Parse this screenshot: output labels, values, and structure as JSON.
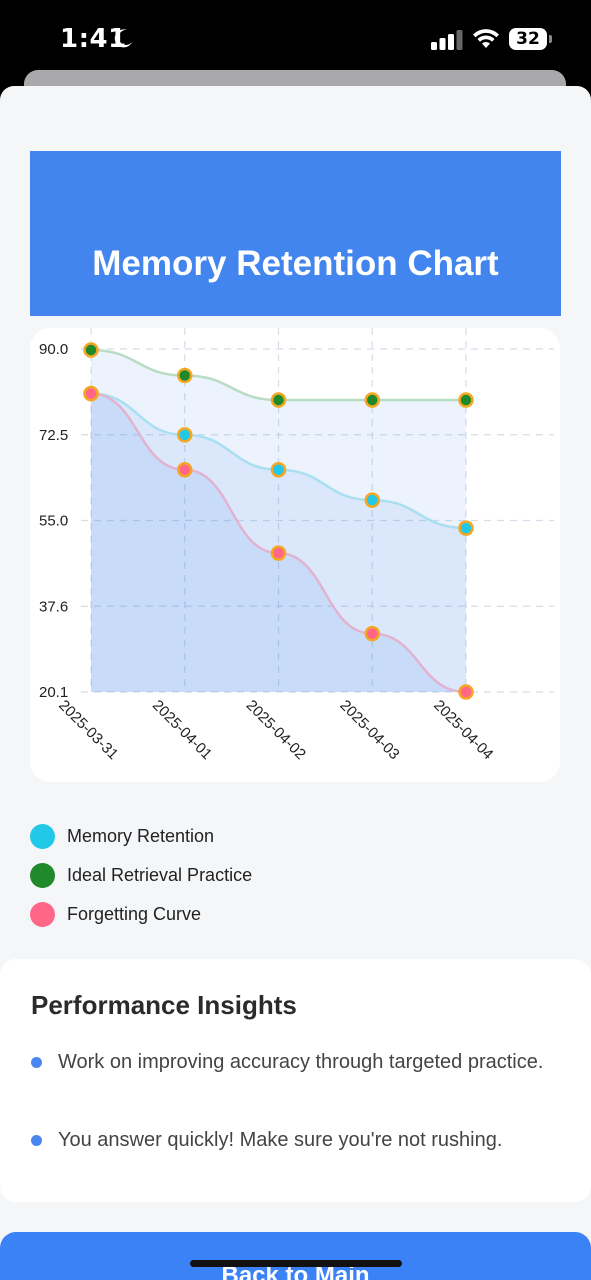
{
  "status": {
    "time": "1:41",
    "battery": "32"
  },
  "chart": {
    "title": "Memory Retention Chart"
  },
  "chart_data": {
    "type": "area",
    "title": "Memory Retention Chart",
    "categories": [
      "2025-03-31",
      "2025-04-01",
      "2025-04-02",
      "2025-04-03",
      "2025-04-04"
    ],
    "ylim": [
      20.1,
      90.0
    ],
    "yticks": [
      "90.0",
      "72.5",
      "55.0",
      "37.6",
      "20.1"
    ],
    "grid": true,
    "series": [
      {
        "name": "Memory Retention",
        "color": "#22c8e8",
        "values": [
          80.9,
          72.5,
          65.4,
          59.2,
          53.5
        ]
      },
      {
        "name": "Ideal Retrieval Practice",
        "color": "#1f8a2a",
        "values": [
          89.8,
          84.6,
          79.6,
          79.6,
          79.6
        ]
      },
      {
        "name": "Forgetting Curve",
        "color": "#ff6687",
        "values": [
          80.9,
          65.4,
          48.4,
          32.0,
          20.1
        ]
      }
    ]
  },
  "legend": [
    {
      "label": "Memory Retention",
      "color": "#22c8e8"
    },
    {
      "label": "Ideal Retrieval Practice",
      "color": "#1f8a2a"
    },
    {
      "label": "Forgetting Curve",
      "color": "#ff6687"
    }
  ],
  "insights": {
    "title": "Performance Insights",
    "items": [
      "Work on improving accuracy through targeted practice.",
      "You answer quickly! Make sure you're not rushing."
    ]
  },
  "actions": {
    "back_label": "Back to Main"
  }
}
